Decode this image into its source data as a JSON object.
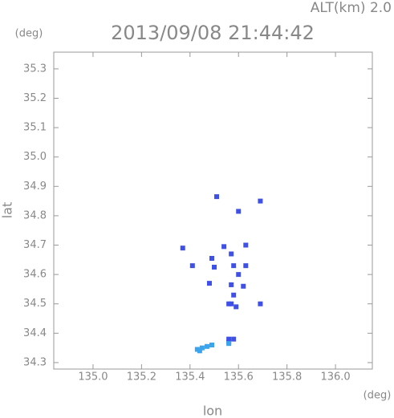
{
  "chart_data": {
    "type": "scatter",
    "title": "2013/09/08 21:44:42",
    "subtitle": "ALT(km) 2.0",
    "y_unit": "(deg)",
    "x_unit": "(deg)",
    "x_label": "lon",
    "y_label": "lat",
    "xlim": [
      134.838,
      136.152
    ],
    "ylim": [
      34.278,
      35.357
    ],
    "xticks": [
      {
        "value": 135,
        "label": "135.0"
      },
      135.2,
      135.4,
      135.6,
      135.8,
      {
        "value": 136,
        "label": "136.0"
      }
    ],
    "yticks": [
      34.3,
      34.4,
      34.5,
      34.6,
      34.7,
      34.8,
      34.9,
      {
        "value": 35,
        "label": "35.0"
      },
      35.1,
      35.2,
      35.3
    ],
    "grid": false,
    "series": [
      {
        "color": "#3f50e6",
        "x": [
          135.37,
          135.41,
          135.49,
          135.5,
          135.48,
          135.57,
          135.58,
          135.63,
          135.57,
          135.58,
          135.56,
          135.57,
          135.63,
          135.6,
          135.69,
          135.51,
          135.69,
          135.6,
          135.56,
          135.58,
          135.56,
          135.59,
          135.54,
          135.62
        ],
        "y": [
          34.69,
          34.63,
          34.655,
          34.625,
          34.57,
          34.67,
          34.63,
          34.63,
          34.565,
          34.53,
          34.5,
          34.5,
          34.7,
          34.6,
          34.5,
          34.865,
          34.85,
          34.815,
          34.38,
          34.38,
          34.37,
          34.49,
          34.695,
          34.56
        ]
      },
      {
        "color": "#3aa4ec",
        "x": [
          135.43,
          135.45,
          135.47,
          135.49,
          135.44,
          135.56
        ],
        "y": [
          34.345,
          34.35,
          34.355,
          34.36,
          34.34,
          34.365
        ]
      }
    ]
  }
}
